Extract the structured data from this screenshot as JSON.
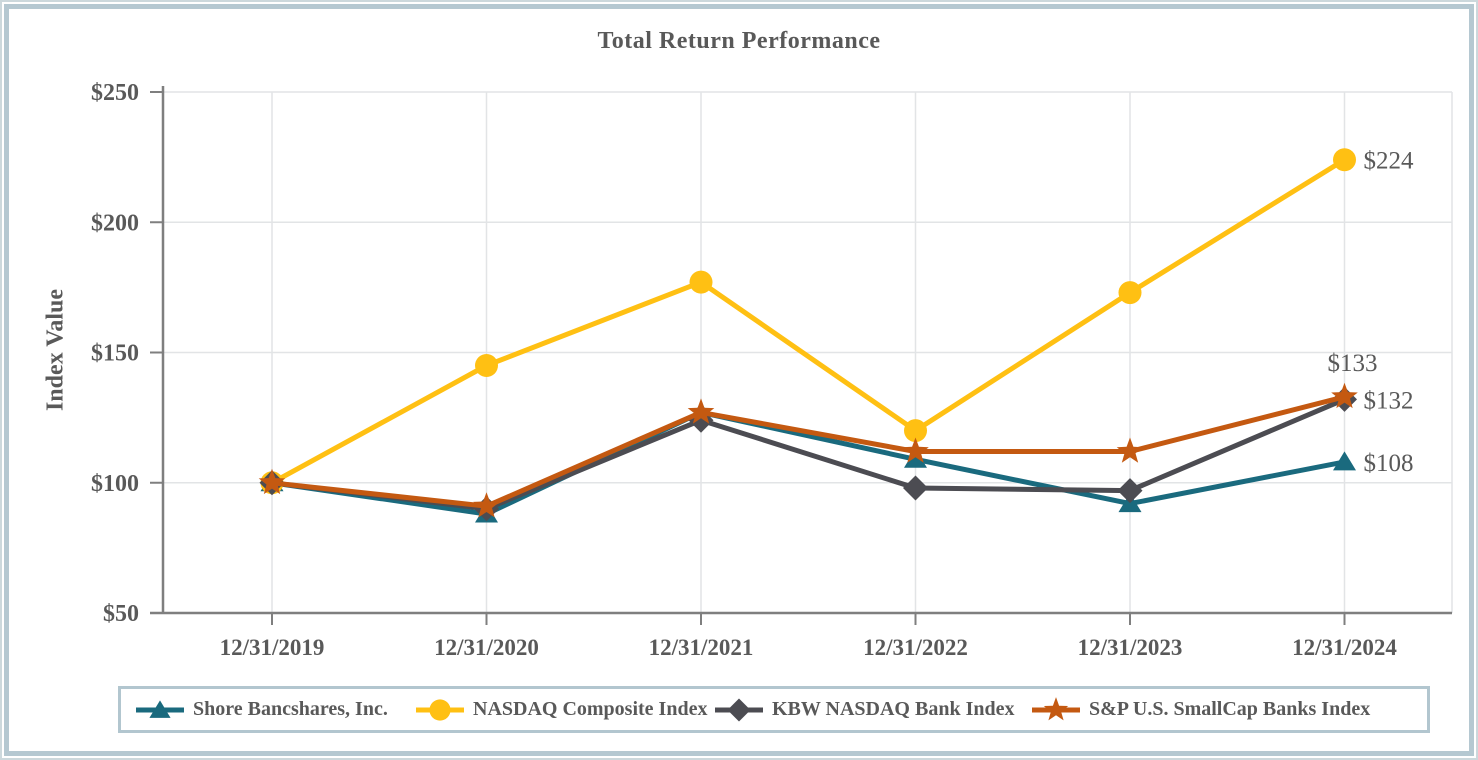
{
  "chart_data": {
    "type": "line",
    "title": "Total Return Performance",
    "ylabel": "Index Value",
    "xlabel": "",
    "categories": [
      "12/31/2019",
      "12/31/2020",
      "12/31/2021",
      "12/31/2022",
      "12/31/2023",
      "12/31/2024"
    ],
    "ylim": [
      50,
      250
    ],
    "y_ticks": [
      50,
      100,
      150,
      200,
      250
    ],
    "y_tick_labels": [
      "$50",
      "$100",
      "$150",
      "$200",
      "$250"
    ],
    "grid": true,
    "legend_position": "bottom",
    "series": [
      {
        "name": "Shore Bancshares, Inc.",
        "marker": "triangle",
        "color": "#1A6A7E",
        "values": [
          100,
          88,
          127,
          109,
          92,
          108
        ],
        "end_label": "$108",
        "end_label_position": "right"
      },
      {
        "name": "NASDAQ Composite Index",
        "marker": "circle",
        "color": "#FFC013",
        "values": [
          100,
          145,
          177,
          120,
          173,
          224
        ],
        "end_label": "$224",
        "end_label_position": "right"
      },
      {
        "name": "KBW NASDAQ Bank Index",
        "marker": "diamond",
        "color": "#4C4C52",
        "values": [
          100,
          90,
          124,
          98,
          97,
          132
        ],
        "end_label": "$132",
        "end_label_position": "right"
      },
      {
        "name": "S&P U.S. SmallCap Banks Index",
        "marker": "star",
        "color": "#C45911",
        "values": [
          100,
          91,
          127,
          112,
          112,
          133
        ],
        "end_label": "$133",
        "end_label_position": "above"
      }
    ]
  },
  "colors": {
    "text": "#595959",
    "axis": "#7F7F7F",
    "gridline": "#E2E4E6",
    "frame_border": "#B5C8D1",
    "legend_border": "#B2C6CF",
    "background": "#FFFFFF"
  }
}
